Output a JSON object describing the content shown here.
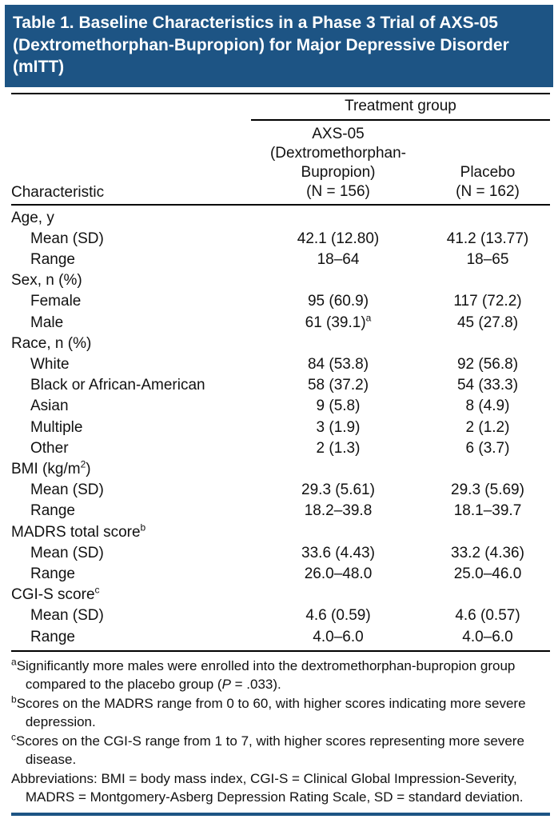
{
  "title": "Table 1. Baseline Characteristics in a Phase 3 Trial of AXS-05 (Dextromethorphan-Bupropion) for Major Depressive Disorder (mITT)",
  "colors": {
    "header_bg": "#1d5484",
    "bottom_rule": "#1d5484",
    "rule": "#000000"
  },
  "header": {
    "span_label": "Treatment group",
    "characteristic_label": "Characteristic",
    "axs05": {
      "line1": "AXS-05",
      "line2": "(Dextromethorphan-",
      "line3": "Bupropion)",
      "line4": "(N = 156)"
    },
    "placebo": {
      "line1": "Placebo",
      "line2": "(N = 162)"
    }
  },
  "rows": [
    {
      "label": "Age, y"
    },
    {
      "label": "Mean (SD)",
      "v1": "42.1 (12.80)",
      "v2": "41.2 (13.77)"
    },
    {
      "label": "Range",
      "v1": "18–64",
      "v2": "18–65"
    },
    {
      "label": "Sex, n (%)"
    },
    {
      "label": "Female",
      "v1": "95 (60.9)",
      "v2": "117 (72.2)"
    },
    {
      "label": "Male",
      "v1": "61 (39.1)",
      "v1_sup": "a",
      "v2": "45 (27.8)"
    },
    {
      "label": "Race, n (%)"
    },
    {
      "label": "White",
      "v1": "84 (53.8)",
      "v2": "92 (56.8)"
    },
    {
      "label": "Black or African-American",
      "v1": "58 (37.2)",
      "v2": "54 (33.3)"
    },
    {
      "label": "Asian",
      "v1": "9 (5.8)",
      "v2": "8 (4.9)"
    },
    {
      "label": "Multiple",
      "v1": "3 (1.9)",
      "v2": "2 (1.2)"
    },
    {
      "label": "Other",
      "v1": "2 (1.3)",
      "v2": "6 (3.7)"
    },
    {
      "label": "BMI (kg/m",
      "label_sup": "2",
      "label_post": ")"
    },
    {
      "label": "Mean (SD)",
      "v1": "29.3 (5.61)",
      "v2": "29.3 (5.69)"
    },
    {
      "label": "Range",
      "v1": "18.2–39.8",
      "v2": "18.1–39.7"
    },
    {
      "label": "MADRS total score",
      "label_sup": "b"
    },
    {
      "label": "Mean (SD)",
      "v1": "33.6 (4.43)",
      "v2": "33.2 (4.36)"
    },
    {
      "label": "Range",
      "v1": "26.0–48.0",
      "v2": "25.0–46.0"
    },
    {
      "label": "CGI-S score",
      "label_sup": "c"
    },
    {
      "label": "Mean (SD)",
      "v1": "4.6 (0.59)",
      "v2": "4.6 (0.57)"
    },
    {
      "label": "Range",
      "v1": "4.0–6.0",
      "v2": "4.0–6.0"
    }
  ],
  "footnotes": {
    "a": {
      "marker": "a",
      "text_pre": "Significantly more males were enrolled into the dextromethorphan-bupropion group compared to the placebo group (",
      "italic": "P",
      "text_post": " = .033)."
    },
    "b": {
      "marker": "b",
      "text": "Scores on the MADRS range from 0 to 60, with higher scores indicating more severe depression."
    },
    "c": {
      "marker": "c",
      "text": "Scores on the CGI-S range from 1 to 7, with higher scores representing more severe disease."
    },
    "abbrev": {
      "text": "Abbreviations: BMI = body mass index, CGI-S = Clinical Global Impression-Severity, MADRS = Montgomery-Asberg Depression Rating Scale, SD = standard deviation."
    }
  }
}
